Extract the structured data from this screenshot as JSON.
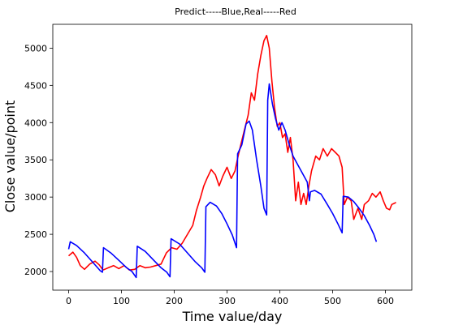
{
  "chart_data": {
    "type": "line",
    "title": "Predict-----Blue,Real-----Red",
    "xlabel": "Time value/day",
    "ylabel": "Close value/point",
    "xlim": [
      -30,
      650
    ],
    "ylim": [
      1750,
      5320
    ],
    "xticks": [
      0,
      100,
      200,
      300,
      400,
      500,
      600
    ],
    "yticks": [
      2000,
      2500,
      3000,
      3500,
      4000,
      4500,
      5000
    ],
    "grid": false,
    "series": [
      {
        "color": "#ff0000",
        "points": [
          [
            0,
            2210
          ],
          [
            8,
            2260
          ],
          [
            15,
            2190
          ],
          [
            22,
            2080
          ],
          [
            30,
            2030
          ],
          [
            40,
            2100
          ],
          [
            50,
            2140
          ],
          [
            58,
            2090
          ],
          [
            65,
            2020
          ],
          [
            75,
            2050
          ],
          [
            85,
            2080
          ],
          [
            95,
            2040
          ],
          [
            105,
            2080
          ],
          [
            115,
            2020
          ],
          [
            125,
            2030
          ],
          [
            135,
            2080
          ],
          [
            145,
            2050
          ],
          [
            155,
            2060
          ],
          [
            165,
            2080
          ],
          [
            175,
            2100
          ],
          [
            185,
            2250
          ],
          [
            195,
            2320
          ],
          [
            205,
            2300
          ],
          [
            215,
            2380
          ],
          [
            225,
            2500
          ],
          [
            235,
            2620
          ],
          [
            242,
            2820
          ],
          [
            250,
            3000
          ],
          [
            256,
            3150
          ],
          [
            262,
            3250
          ],
          [
            270,
            3370
          ],
          [
            278,
            3300
          ],
          [
            285,
            3150
          ],
          [
            292,
            3280
          ],
          [
            300,
            3400
          ],
          [
            308,
            3250
          ],
          [
            315,
            3350
          ],
          [
            320,
            3520
          ],
          [
            326,
            3700
          ],
          [
            333,
            3900
          ],
          [
            340,
            4100
          ],
          [
            346,
            4400
          ],
          [
            352,
            4300
          ],
          [
            358,
            4650
          ],
          [
            364,
            4900
          ],
          [
            370,
            5100
          ],
          [
            375,
            5170
          ],
          [
            380,
            5000
          ],
          [
            385,
            4550
          ],
          [
            390,
            4200
          ],
          [
            395,
            3950
          ],
          [
            400,
            4000
          ],
          [
            405,
            3800
          ],
          [
            410,
            3850
          ],
          [
            415,
            3600
          ],
          [
            420,
            3800
          ],
          [
            425,
            3500
          ],
          [
            430,
            2950
          ],
          [
            435,
            3200
          ],
          [
            440,
            2900
          ],
          [
            445,
            3050
          ],
          [
            450,
            2900
          ],
          [
            455,
            3150
          ],
          [
            460,
            3350
          ],
          [
            468,
            3550
          ],
          [
            475,
            3500
          ],
          [
            482,
            3650
          ],
          [
            490,
            3550
          ],
          [
            498,
            3650
          ],
          [
            505,
            3600
          ],
          [
            512,
            3550
          ],
          [
            518,
            3400
          ],
          [
            522,
            2900
          ],
          [
            528,
            3000
          ],
          [
            535,
            2950
          ],
          [
            540,
            2700
          ],
          [
            548,
            2850
          ],
          [
            555,
            2700
          ],
          [
            560,
            2900
          ],
          [
            568,
            2950
          ],
          [
            575,
            3050
          ],
          [
            582,
            3000
          ],
          [
            590,
            3070
          ],
          [
            596,
            2950
          ],
          [
            602,
            2850
          ],
          [
            608,
            2830
          ],
          [
            612,
            2900
          ],
          [
            618,
            2920
          ],
          [
            620,
            2930
          ]
        ]
      },
      {
        "color": "#0000ff",
        "points": [
          [
            0,
            2300
          ],
          [
            3,
            2400
          ],
          [
            15,
            2350
          ],
          [
            30,
            2250
          ],
          [
            45,
            2130
          ],
          [
            60,
            2010
          ],
          [
            64,
            1990
          ],
          [
            66,
            2320
          ],
          [
            80,
            2250
          ],
          [
            95,
            2150
          ],
          [
            110,
            2050
          ],
          [
            120,
            2000
          ],
          [
            128,
            1920
          ],
          [
            130,
            2340
          ],
          [
            145,
            2270
          ],
          [
            160,
            2160
          ],
          [
            175,
            2050
          ],
          [
            186,
            1990
          ],
          [
            192,
            1930
          ],
          [
            194,
            2440
          ],
          [
            210,
            2370
          ],
          [
            225,
            2250
          ],
          [
            240,
            2130
          ],
          [
            252,
            2050
          ],
          [
            258,
            1990
          ],
          [
            260,
            2870
          ],
          [
            268,
            2930
          ],
          [
            280,
            2880
          ],
          [
            290,
            2780
          ],
          [
            300,
            2640
          ],
          [
            310,
            2490
          ],
          [
            318,
            2320
          ],
          [
            320,
            3580
          ],
          [
            328,
            3700
          ],
          [
            336,
            3980
          ],
          [
            342,
            4020
          ],
          [
            348,
            3900
          ],
          [
            356,
            3500
          ],
          [
            364,
            3150
          ],
          [
            370,
            2850
          ],
          [
            375,
            2760
          ],
          [
            377,
            4300
          ],
          [
            380,
            4520
          ],
          [
            386,
            4250
          ],
          [
            392,
            4050
          ],
          [
            398,
            3900
          ],
          [
            404,
            4000
          ],
          [
            410,
            3900
          ],
          [
            418,
            3700
          ],
          [
            425,
            3550
          ],
          [
            435,
            3420
          ],
          [
            445,
            3290
          ],
          [
            452,
            3200
          ],
          [
            456,
            2950
          ],
          [
            458,
            3070
          ],
          [
            466,
            3090
          ],
          [
            478,
            3040
          ],
          [
            490,
            2900
          ],
          [
            500,
            2780
          ],
          [
            510,
            2640
          ],
          [
            518,
            2520
          ],
          [
            520,
            3010
          ],
          [
            530,
            3000
          ],
          [
            540,
            2940
          ],
          [
            550,
            2850
          ],
          [
            560,
            2750
          ],
          [
            570,
            2620
          ],
          [
            578,
            2500
          ],
          [
            583,
            2400
          ]
        ]
      }
    ]
  }
}
